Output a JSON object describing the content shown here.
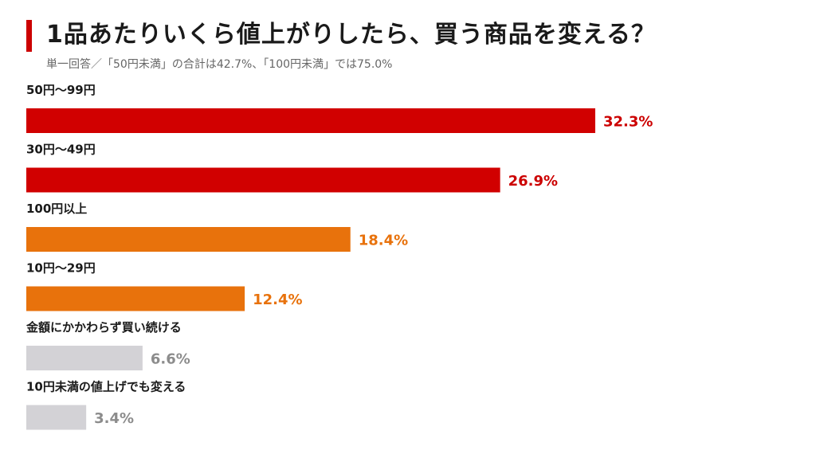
{
  "chart_data": {
    "type": "bar",
    "orientation": "horizontal",
    "title": "1品あたりいくら値上がりしたら、買う商品を変える？",
    "subtitle": "単一回答／「50円未満」の合計は42.7%、「100円未満」では75.0%",
    "categories": [
      "50円～99円",
      "30円～49円",
      "100円以上",
      "10円～29円",
      "金額にかかわらず買い続ける",
      "10円未満の値上げでも変える"
    ],
    "values": [
      32.3,
      26.9,
      18.4,
      12.4,
      6.6,
      3.4
    ],
    "value_labels": [
      "32.3%",
      "26.9%",
      "18.4%",
      "12.4%",
      "6.6%",
      "3.4%"
    ],
    "colors": [
      "#d10000",
      "#d10000",
      "#e8720c",
      "#e8720c",
      "#d3d2d6",
      "#d3d2d6"
    ],
    "label_colors": [
      "#cc0000",
      "#cc0000",
      "#e8720c",
      "#e8720c",
      "#8c8c8c",
      "#8c8c8c"
    ],
    "unit": "%",
    "xlim": [
      0,
      32.3
    ]
  }
}
